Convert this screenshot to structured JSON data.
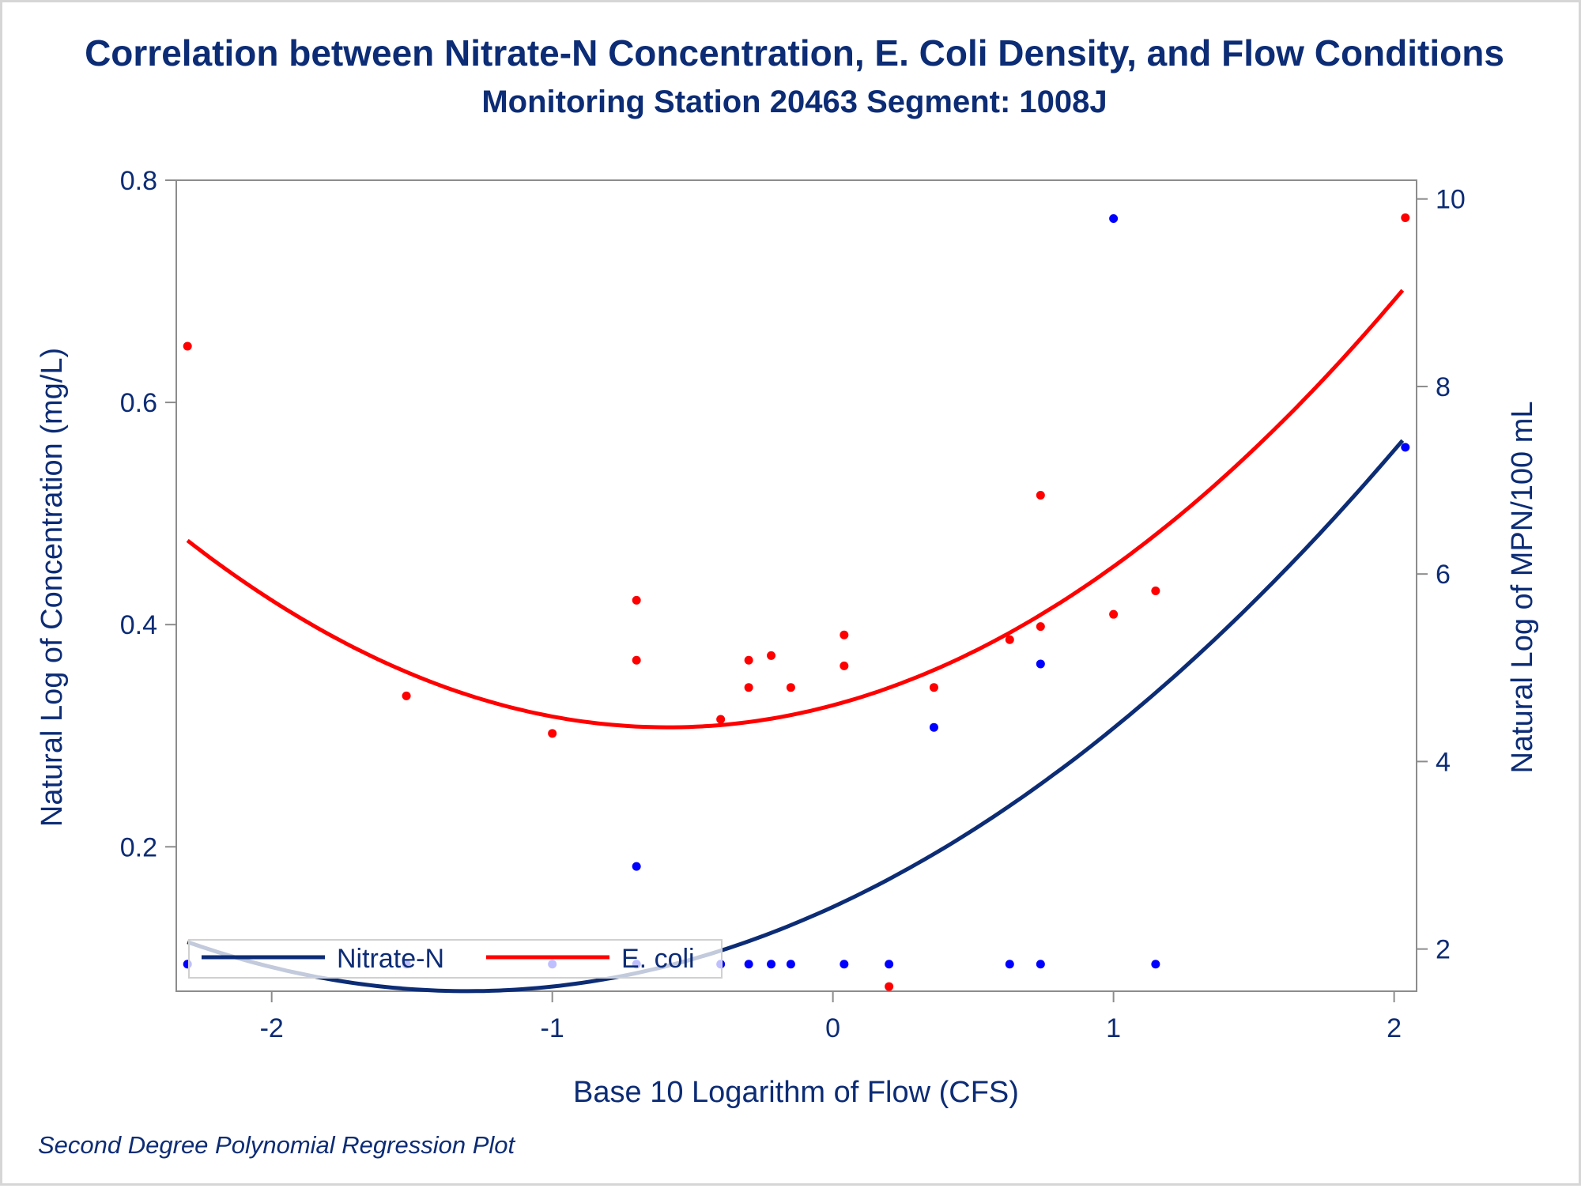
{
  "chart_data": {
    "type": "scatter",
    "title": "Correlation between Nitrate-N Concentration, E. Coli Density, and Flow Conditions",
    "subtitle": "Monitoring Station 20463 Segment: 1008J",
    "xlabel": "Base 10 Logarithm of Flow (CFS)",
    "ylabel_left": "Natural Log of Concentration (mg/L)",
    "ylabel_right": "Natural Log of MPN/100 mL",
    "footnote": "Second Degree Polynomial Regression Plot",
    "xlim": [
      -2.34,
      2.08
    ],
    "ylim_left": [
      0.07,
      0.8
    ],
    "ylim_right": [
      1.55,
      10.2
    ],
    "x_ticks": [
      -2,
      -1,
      0,
      1,
      2
    ],
    "x_tick_labels": [
      "-2",
      "-1",
      "0",
      "1",
      "2"
    ],
    "yleft_ticks": [
      0.2,
      0.4,
      0.6,
      0.8
    ],
    "yleft_tick_labels": [
      "0.2",
      "0.4",
      "0.6",
      "0.8"
    ],
    "yright_ticks": [
      2,
      4,
      6,
      8,
      10
    ],
    "yright_tick_labels": [
      "2",
      "4",
      "6",
      "8",
      "10"
    ],
    "legend": {
      "position": "bottom-left",
      "items": [
        {
          "label": "Nitrate-N",
          "color": "#0c2c75"
        },
        {
          "label": "E. coli",
          "color": "#ff0000"
        }
      ]
    },
    "series": [
      {
        "name": "Nitrate-N",
        "axis": "left",
        "color": "#0c2c75",
        "point_color": "#0000ff",
        "points": [
          {
            "x": -2.3,
            "y": 0.0944
          },
          {
            "x": -1.52,
            "y": 0.0944
          },
          {
            "x": -1.0,
            "y": 0.0944
          },
          {
            "x": -0.7,
            "y": 0.0944
          },
          {
            "x": -0.7,
            "y": 0.1823
          },
          {
            "x": -0.4,
            "y": 0.0944
          },
          {
            "x": -0.3,
            "y": 0.0944
          },
          {
            "x": -0.22,
            "y": 0.0944
          },
          {
            "x": -0.15,
            "y": 0.0944
          },
          {
            "x": 0.04,
            "y": 0.0944
          },
          {
            "x": 0.2,
            "y": 0.0944
          },
          {
            "x": 0.36,
            "y": 0.3075
          },
          {
            "x": 0.63,
            "y": 0.0944
          },
          {
            "x": 0.74,
            "y": 0.0944
          },
          {
            "x": 0.74,
            "y": 0.3646
          },
          {
            "x": 1.0,
            "y": 0.7655
          },
          {
            "x": 1.15,
            "y": 0.0944
          },
          {
            "x": 2.04,
            "y": 0.5596
          }
        ],
        "fit": {
          "degree": 2,
          "coefficients": [
            0.1459,
            0.1163,
            0.0446
          ],
          "x_range": [
            -2.3,
            2.03
          ]
        }
      },
      {
        "name": "E. coli",
        "axis": "right",
        "color": "#ff0000",
        "point_color": "#ff0000",
        "points": [
          {
            "x": -2.3,
            "y": 8.43
          },
          {
            "x": -1.52,
            "y": 4.7
          },
          {
            "x": -1.0,
            "y": 4.3
          },
          {
            "x": -0.7,
            "y": 5.72
          },
          {
            "x": -0.7,
            "y": 5.08
          },
          {
            "x": -0.4,
            "y": 4.45
          },
          {
            "x": -0.3,
            "y": 5.08
          },
          {
            "x": -0.3,
            "y": 4.79
          },
          {
            "x": -0.22,
            "y": 5.13
          },
          {
            "x": -0.15,
            "y": 4.79
          },
          {
            "x": 0.04,
            "y": 5.35
          },
          {
            "x": 0.04,
            "y": 5.02
          },
          {
            "x": 0.2,
            "y": 1.6
          },
          {
            "x": 0.36,
            "y": 4.79
          },
          {
            "x": 0.63,
            "y": 5.3
          },
          {
            "x": 0.74,
            "y": 5.44
          },
          {
            "x": 0.74,
            "y": 6.84
          },
          {
            "x": 1.0,
            "y": 5.57
          },
          {
            "x": 1.15,
            "y": 5.82
          },
          {
            "x": 2.04,
            "y": 9.8
          }
        ],
        "fit": {
          "degree": 2,
          "coefficients": [
            4.6,
            0.8,
            0.68
          ],
          "x_range": [
            -2.3,
            2.03
          ]
        }
      }
    ]
  }
}
